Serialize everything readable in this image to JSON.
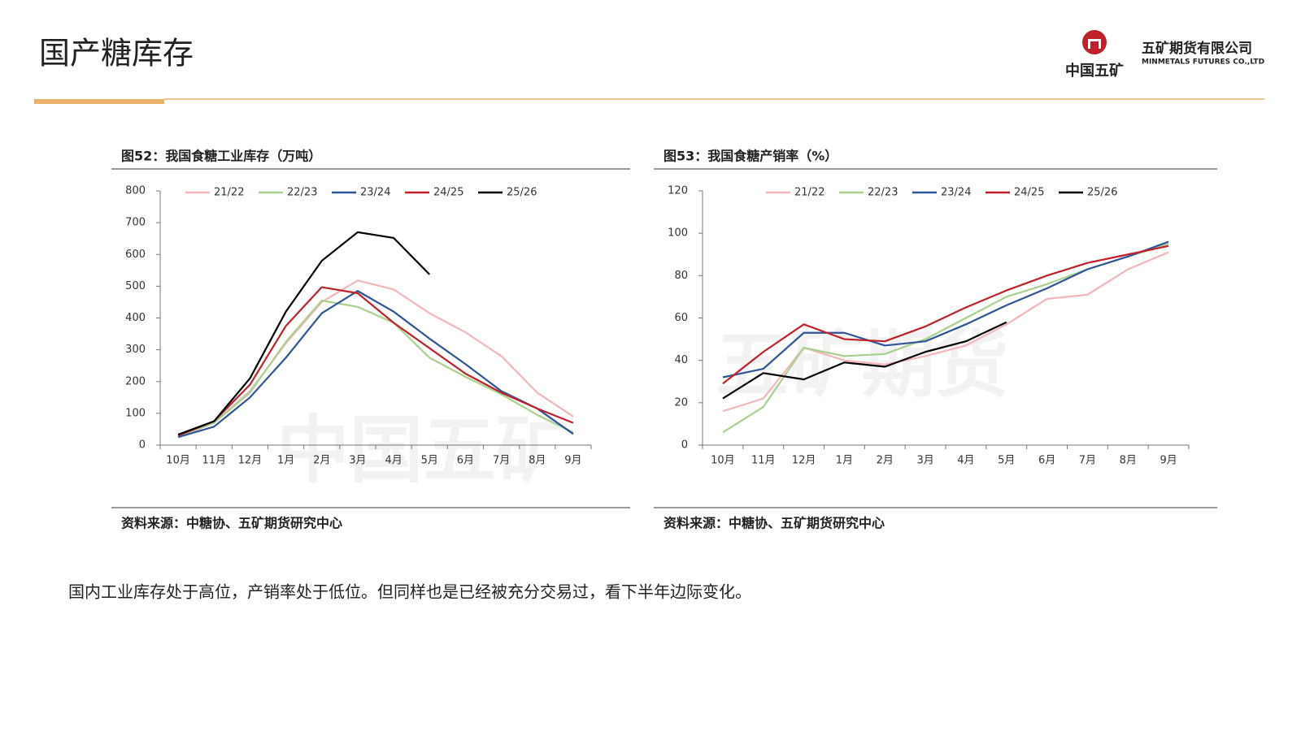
{
  "header": {
    "title": "国产糖库存",
    "company": "五矿期货有限公司",
    "company_en": "MINMETALS FUTURES CO.,LTD",
    "brand": "中国五矿"
  },
  "watermarks": [
    "中国五矿",
    "五矿期货"
  ],
  "chart_data": [
    {
      "type": "line",
      "title": "图52：我国食糖工业库存（万吨）",
      "source": "资料来源：中糖协、五矿期货研究中心",
      "categories": [
        "10月",
        "11月",
        "12月",
        "1月",
        "2月",
        "3月",
        "4月",
        "5月",
        "6月",
        "7月",
        "8月",
        "9月"
      ],
      "ylim": [
        0,
        800
      ],
      "yticks": [
        0,
        100,
        200,
        300,
        400,
        500,
        600,
        700,
        800
      ],
      "grid": false,
      "legend": "top",
      "series": [
        {
          "name": "21/22",
          "color": "#f4b6b8",
          "values": [
            25,
            70,
            170,
            320,
            450,
            518,
            490,
            415,
            355,
            280,
            165,
            90
          ]
        },
        {
          "name": "22/23",
          "color": "#a9d18e",
          "values": [
            28,
            70,
            165,
            325,
            455,
            435,
            385,
            275,
            215,
            160,
            95,
            40
          ]
        },
        {
          "name": "23/24",
          "color": "#2e5597",
          "values": [
            25,
            58,
            150,
            275,
            415,
            485,
            420,
            335,
            255,
            170,
            115,
            35
          ]
        },
        {
          "name": "24/25",
          "color": "#c0202a",
          "values": [
            30,
            75,
            190,
            375,
            497,
            478,
            385,
            305,
            225,
            165,
            115,
            70
          ]
        },
        {
          "name": "25/26",
          "color": "#000000",
          "values": [
            33,
            75,
            210,
            420,
            580,
            670,
            652,
            537,
            null,
            null,
            null,
            null
          ]
        }
      ]
    },
    {
      "type": "line",
      "title": "图53：我国食糖产销率（%）",
      "source": "资料来源：中糖协、五矿期货研究中心",
      "categories": [
        "10月",
        "11月",
        "12月",
        "1月",
        "2月",
        "3月",
        "4月",
        "5月",
        "6月",
        "7月",
        "8月",
        "9月"
      ],
      "ylim": [
        0,
        120
      ],
      "yticks": [
        0,
        20,
        40,
        60,
        80,
        100,
        120
      ],
      "grid": false,
      "legend": "top",
      "series": [
        {
          "name": "21/22",
          "color": "#f4b6b8",
          "values": [
            16,
            22,
            46,
            40,
            38,
            42,
            47,
            57,
            69,
            71,
            83,
            91
          ]
        },
        {
          "name": "22/23",
          "color": "#a9d18e",
          "values": [
            6,
            18,
            46,
            42,
            43,
            50,
            60,
            70,
            76,
            83,
            89,
            95
          ]
        },
        {
          "name": "23/24",
          "color": "#2e5597",
          "values": [
            32,
            36,
            53,
            53,
            47,
            49,
            57,
            66,
            74,
            83,
            89,
            96
          ]
        },
        {
          "name": "24/25",
          "color": "#c0202a",
          "values": [
            29,
            44,
            57,
            50,
            49,
            56,
            65,
            73,
            80,
            86,
            90,
            94
          ]
        },
        {
          "name": "25/26",
          "color": "#000000",
          "values": [
            22,
            34,
            31,
            39,
            37,
            44,
            49,
            58,
            null,
            null,
            null,
            null
          ]
        }
      ]
    }
  ],
  "body": "国内工业库存处于高位，产销率处于低位。但同样也是已经被充分交易过，看下半年边际变化。"
}
